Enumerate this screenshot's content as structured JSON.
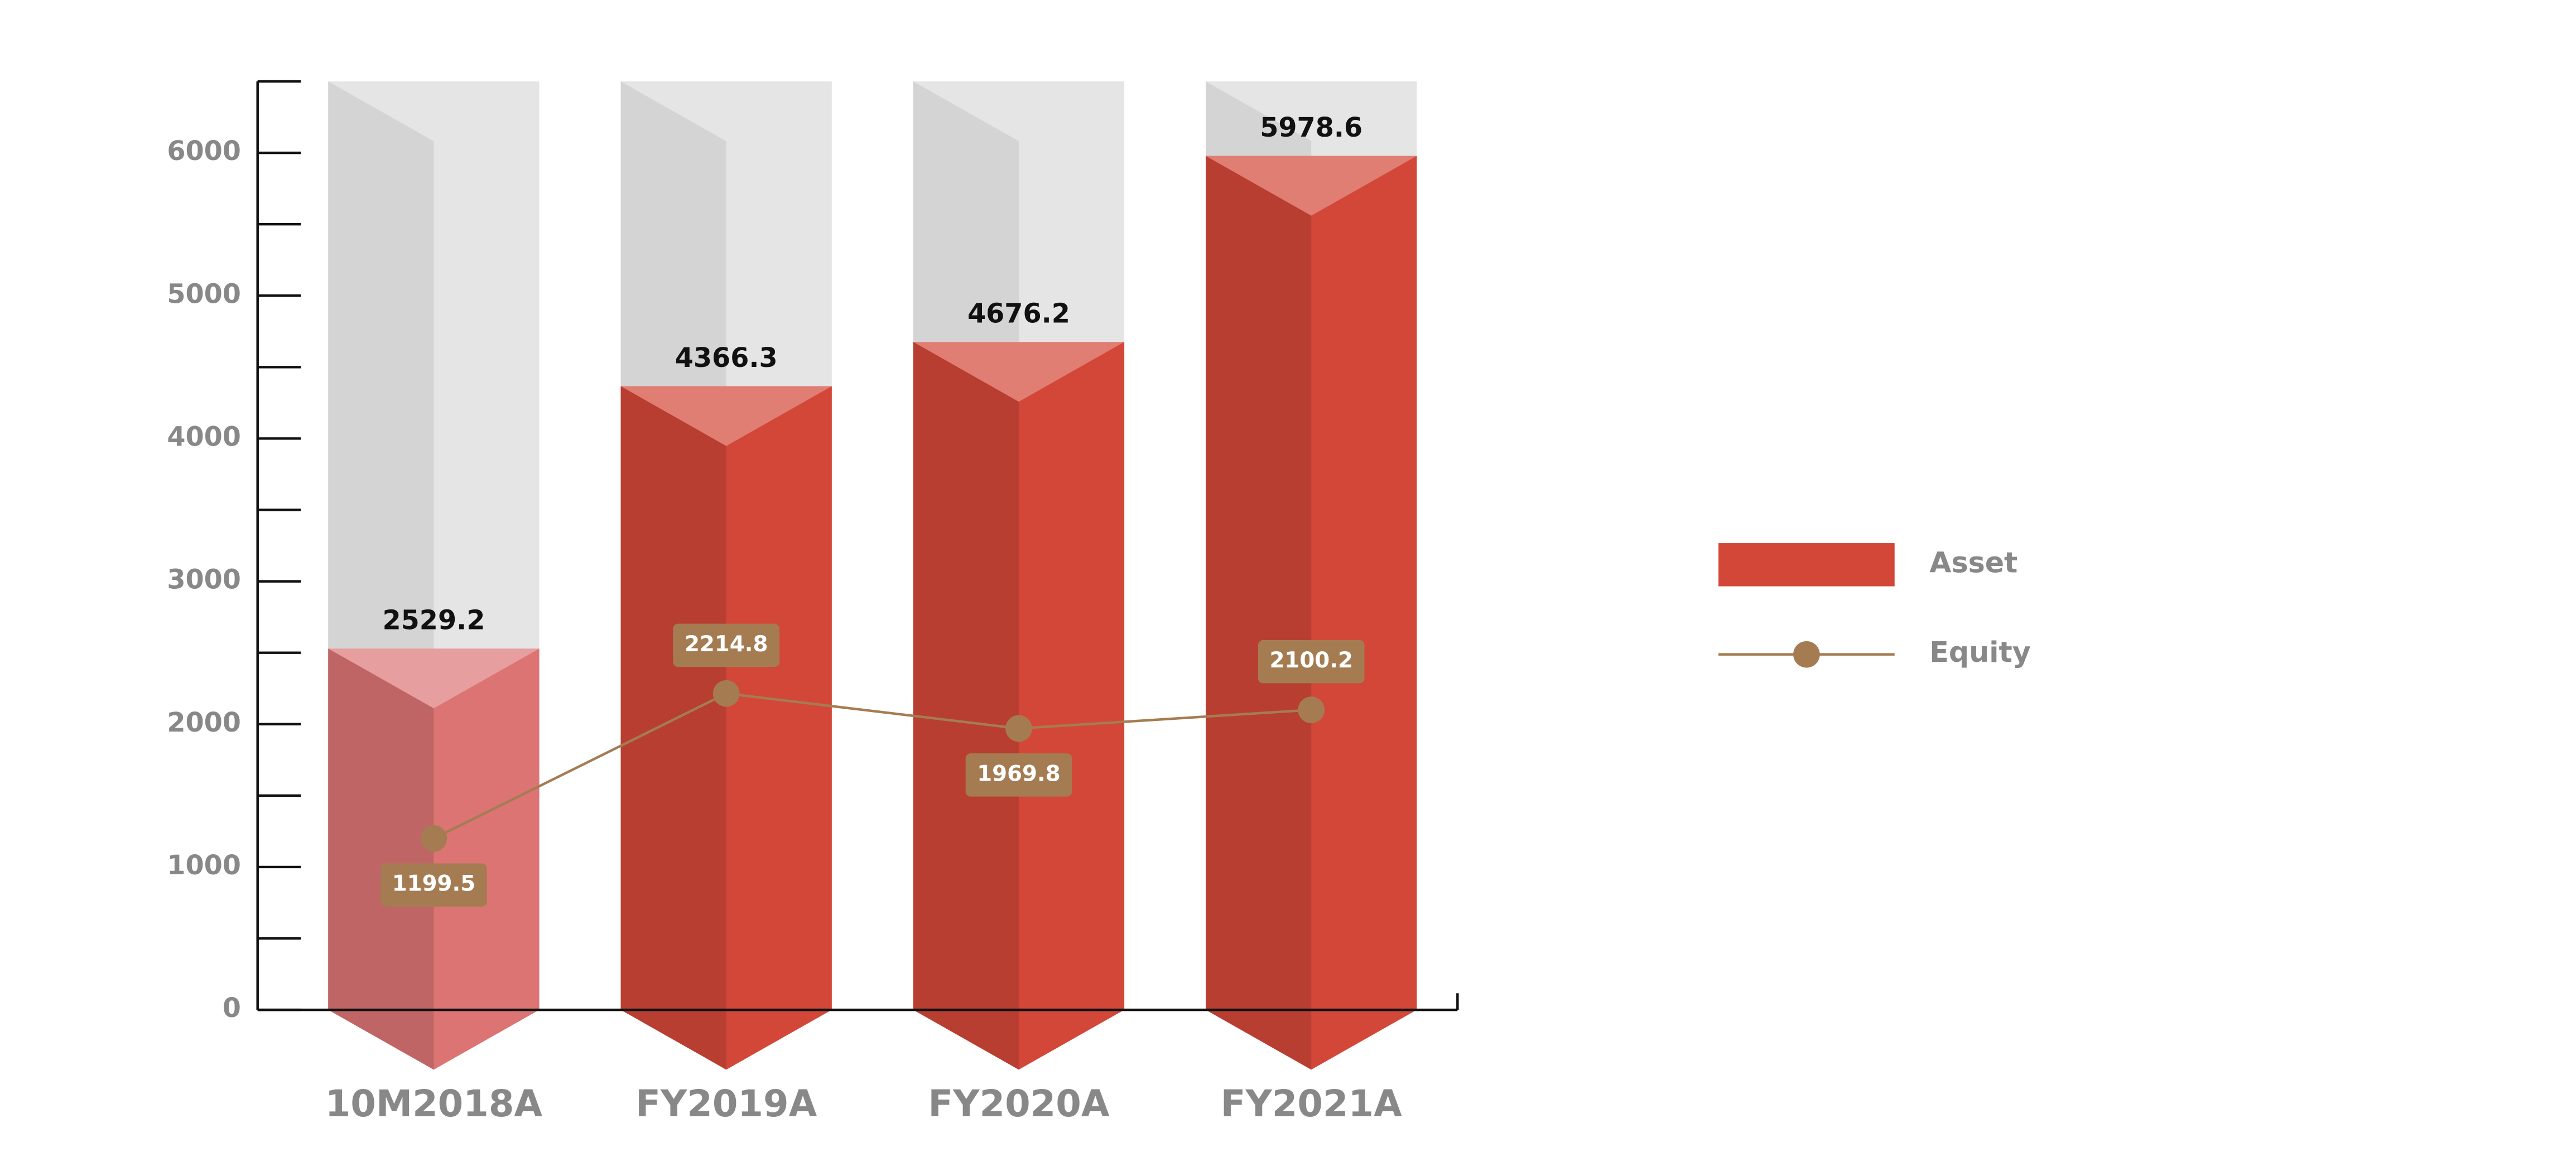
{
  "chart_data": {
    "type": "bar",
    "categories": [
      "10M2018A",
      "FY2019A",
      "FY2020A",
      "FY2021A"
    ],
    "series": [
      {
        "name": "Asset",
        "type": "bar",
        "color": "#d34738",
        "colors": [
          "#dc7474",
          "#d34738",
          "#d34738",
          "#d34738"
        ],
        "values": [
          2529.2,
          4366.3,
          4676.2,
          5978.6
        ]
      },
      {
        "name": "Equity",
        "type": "line",
        "color": "#a57c52",
        "values": [
          1199.5,
          2214.8,
          1969.8,
          2100.2
        ]
      }
    ],
    "ylim": [
      0,
      6500
    ],
    "yticks": [
      0,
      1000,
      2000,
      3000,
      4000,
      5000,
      6000
    ],
    "legend": "right"
  }
}
